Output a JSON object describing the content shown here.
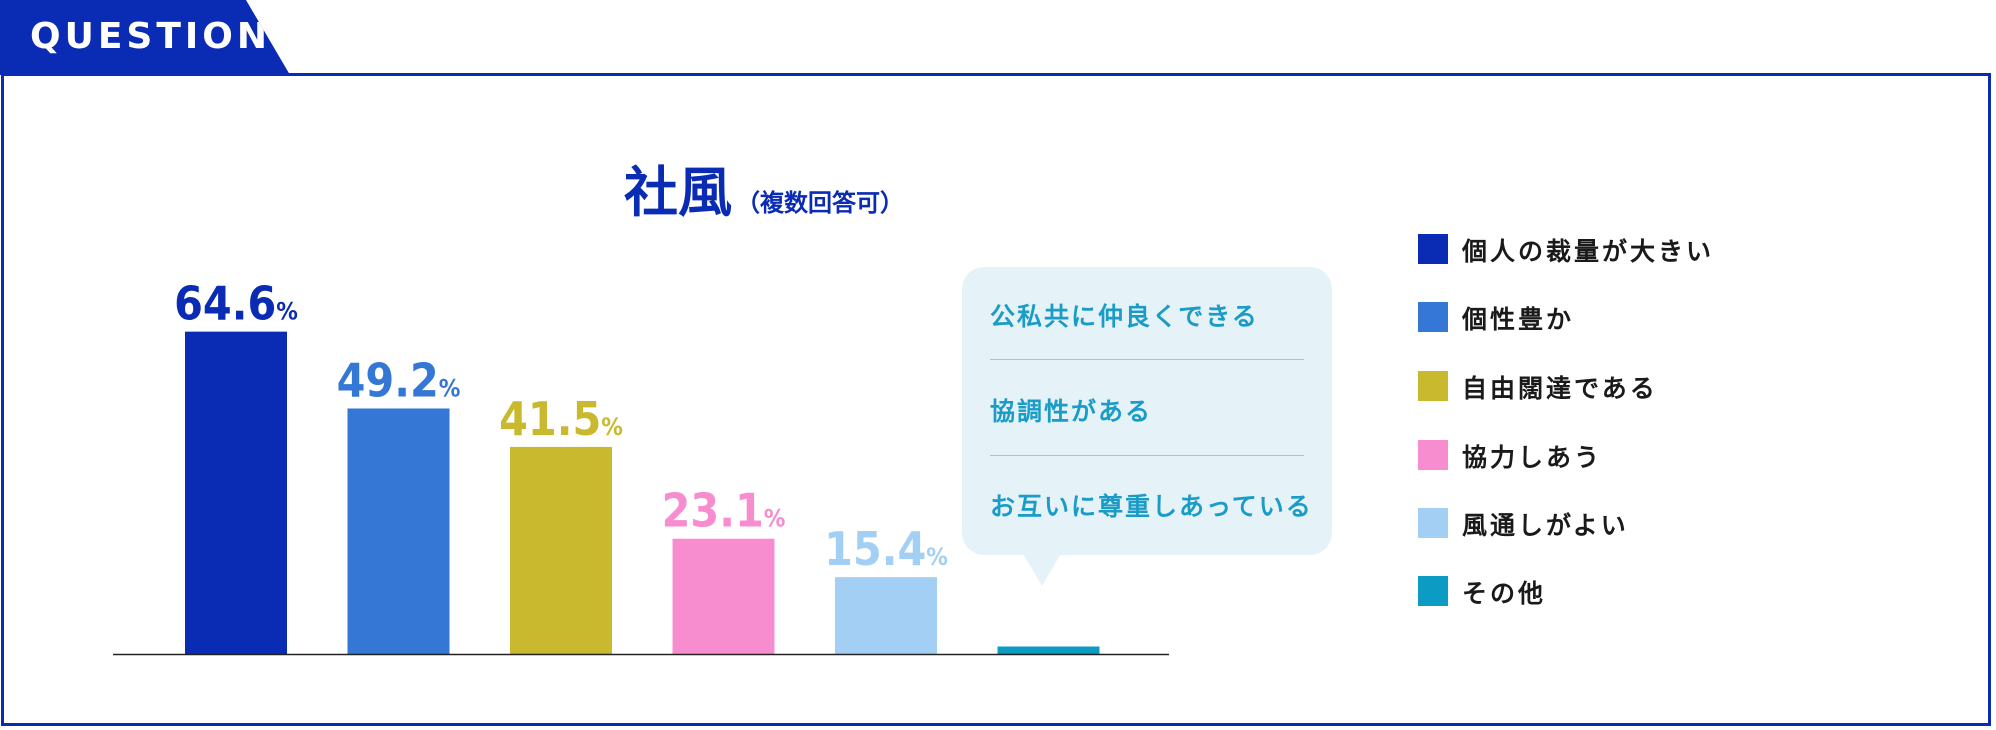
{
  "header": {
    "tab_label": "QUESTION"
  },
  "chart_data": {
    "type": "bar",
    "title": "社風",
    "subtitle": "（複数回答可）",
    "ylim": [
      0,
      70
    ],
    "unit": "%",
    "categories": [
      "個人の裁量が大きい",
      "個性豊か",
      "自由闊達である",
      "協力しあう",
      "風通しがよい",
      "その他"
    ],
    "values": [
      64.6,
      49.2,
      41.5,
      23.1,
      15.4,
      1.5
    ],
    "value_labels": [
      "64.6",
      "49.2",
      "41.5",
      "23.1",
      "15.4",
      ""
    ],
    "colors": [
      "#0a2bb4",
      "#3577d4",
      "#c9b92e",
      "#f78ccf",
      "#a3cff5",
      "#0b9bc3"
    ],
    "legend_position": "right",
    "grid": false,
    "annotation": {
      "attached_to": "その他",
      "items": [
        "公私共に仲良くできる",
        "協調性がある",
        "お互いに尊重しあっている"
      ]
    }
  }
}
